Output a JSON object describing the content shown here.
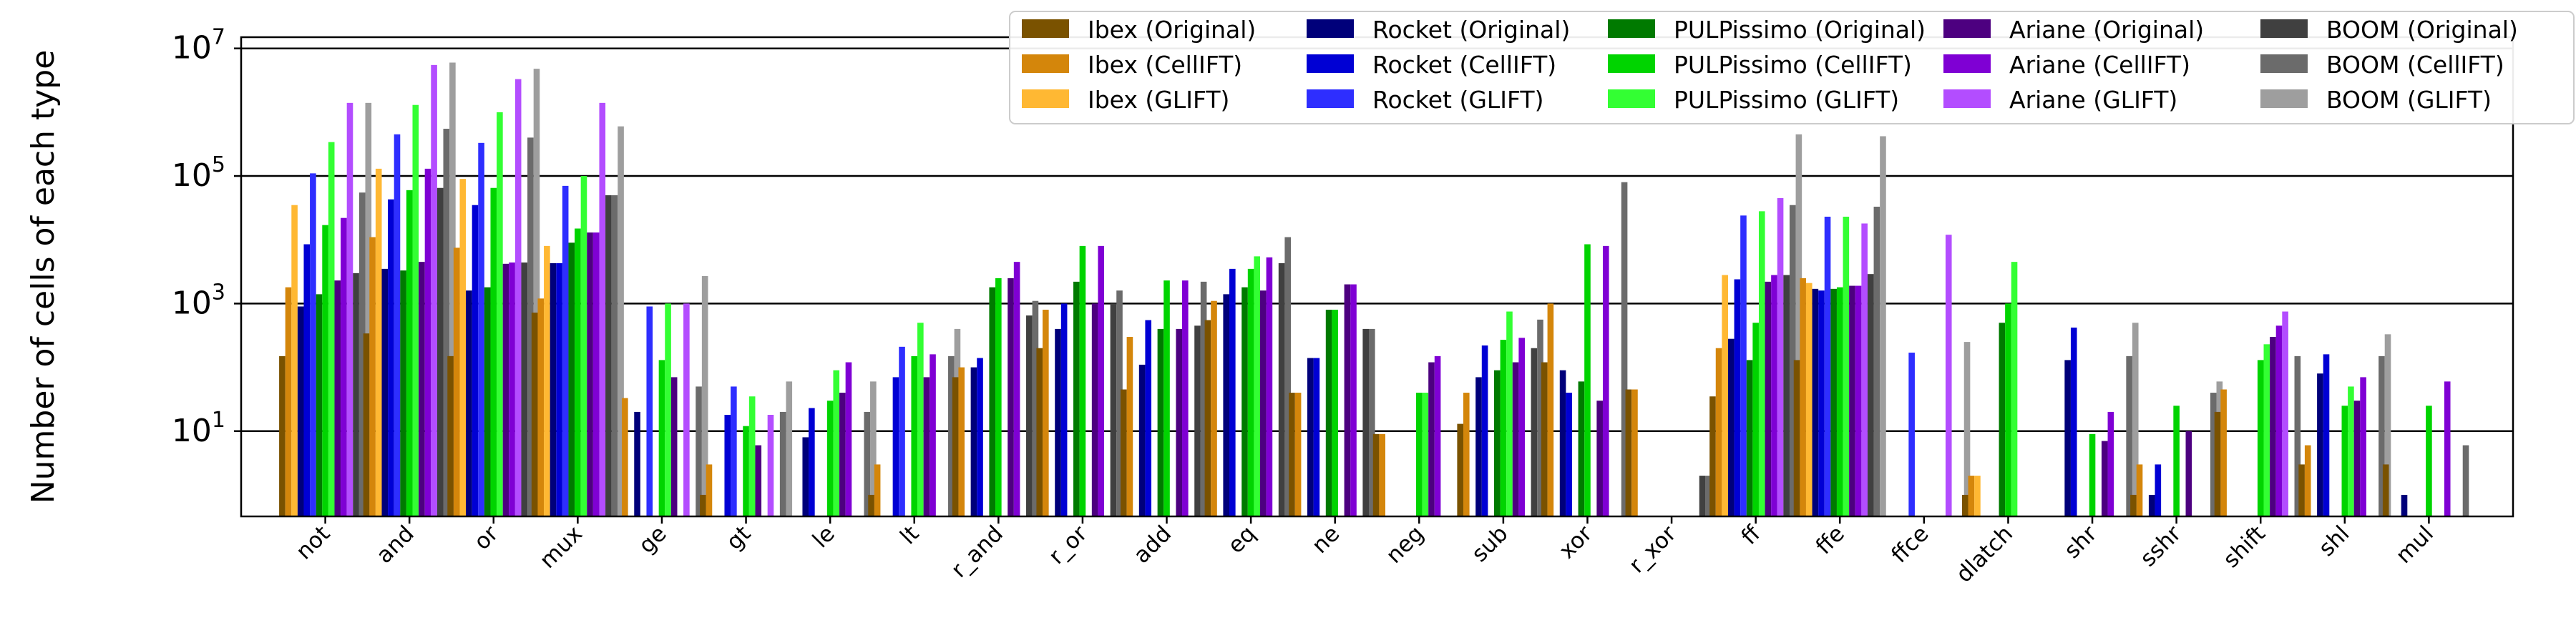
{
  "chart_data": {
    "type": "bar",
    "ylabel": "Number of cells of each type",
    "xlabel": "",
    "yscale": "log",
    "ylim": [
      0.46,
      15000000
    ],
    "y_ticks": [
      {
        "value": 10,
        "base": "10",
        "exp": "1"
      },
      {
        "value": 1000,
        "base": "10",
        "exp": "3"
      },
      {
        "value": 100000,
        "base": "10",
        "exp": "5"
      },
      {
        "value": 10000000,
        "base": "10",
        "exp": "7"
      }
    ],
    "grid": "major horizontal lines",
    "legend_position": "top-right",
    "categories": [
      "not",
      "and",
      "or",
      "mux",
      "ge",
      "gt",
      "le",
      "lt",
      "r_and",
      "r_or",
      "add",
      "eq",
      "ne",
      "neg",
      "sub",
      "xor",
      "r_xor",
      "ff",
      "ffe",
      "ffce",
      "dlatch",
      "shr",
      "sshr",
      "shift",
      "shl",
      "mul"
    ],
    "series": [
      {
        "name": "Ibex (Original)",
        "color": "#7a5200",
        "values": [
          150,
          340,
          150,
          720,
          null,
          1,
          null,
          1,
          70,
          200,
          45,
          550,
          40,
          9,
          13,
          120,
          45,
          35,
          130,
          null,
          1,
          null,
          1,
          20,
          3,
          3
        ]
      },
      {
        "name": "Ibex (CellIFT)",
        "color": "#d4860b",
        "values": [
          1800,
          11000,
          7500,
          1200,
          33,
          3,
          null,
          3,
          100,
          800,
          300,
          1100,
          40,
          9,
          40,
          1000,
          45,
          200,
          2500,
          null,
          2,
          null,
          3,
          45,
          6,
          null
        ]
      },
      {
        "name": "Ibex (GLIFT)",
        "color": "#ffb833",
        "values": [
          35000,
          130000,
          90000,
          8000,
          null,
          null,
          null,
          null,
          null,
          null,
          null,
          null,
          null,
          null,
          null,
          null,
          null,
          2800,
          2100,
          null,
          2,
          null,
          null,
          null,
          null,
          null
        ]
      },
      {
        "name": "Rocket (Original)",
        "color": "#00007a",
        "values": [
          900,
          3500,
          1600,
          4300,
          20,
          null,
          8,
          null,
          100,
          400,
          110,
          1400,
          140,
          null,
          70,
          90,
          null,
          280,
          1700,
          null,
          null,
          130,
          1,
          null,
          80,
          1
        ]
      },
      {
        "name": "Rocket (CellIFT)",
        "color": "#0000d4",
        "values": [
          8500,
          43000,
          35000,
          4300,
          null,
          18,
          23,
          70,
          140,
          1000,
          550,
          3500,
          140,
          null,
          220,
          40,
          null,
          2400,
          1600,
          null,
          null,
          420,
          3,
          null,
          160,
          null
        ]
      },
      {
        "name": "Rocket (GLIFT)",
        "color": "#2e2eff",
        "values": [
          110000,
          450000,
          330000,
          70000,
          900,
          50,
          null,
          210,
          null,
          null,
          null,
          null,
          null,
          null,
          null,
          null,
          null,
          24000,
          23000,
          170,
          null,
          null,
          null,
          null,
          null,
          null
        ]
      },
      {
        "name": "PULPissimo (Original)",
        "color": "#007a00",
        "values": [
          1400,
          3300,
          1800,
          9000,
          null,
          null,
          null,
          null,
          1800,
          2200,
          400,
          1800,
          800,
          null,
          90,
          60,
          null,
          130,
          1700,
          null,
          500,
          null,
          null,
          null,
          null,
          null
        ]
      },
      {
        "name": "PULPissimo (CellIFT)",
        "color": "#00d400",
        "values": [
          17000,
          60000,
          65000,
          15000,
          130,
          12,
          30,
          150,
          2500,
          8000,
          2300,
          3500,
          800,
          40,
          270,
          8500,
          null,
          500,
          1800,
          null,
          1000,
          9,
          25,
          130,
          25,
          25
        ]
      },
      {
        "name": "PULPissimo (GLIFT)",
        "color": "#33ff33",
        "values": [
          340000,
          1300000,
          1000000,
          100000,
          1000,
          35,
          90,
          500,
          null,
          null,
          null,
          5500,
          null,
          40,
          750,
          null,
          null,
          28000,
          23000,
          null,
          4500,
          null,
          null,
          230,
          50,
          null
        ]
      },
      {
        "name": "Ariane (Original)",
        "color": "#4d0080",
        "values": [
          2300,
          4500,
          4200,
          13000,
          70,
          6,
          40,
          70,
          2500,
          1000,
          400,
          1600,
          2000,
          120,
          120,
          30,
          null,
          2200,
          1900,
          null,
          null,
          7,
          10,
          300,
          30,
          null
        ]
      },
      {
        "name": "Ariane (CellIFT)",
        "color": "#7f00d4",
        "values": [
          22000,
          130000,
          4400,
          13000,
          null,
          null,
          120,
          160,
          4500,
          8000,
          2300,
          5300,
          2000,
          150,
          290,
          8000,
          null,
          2800,
          1900,
          null,
          null,
          20,
          null,
          450,
          70,
          60
        ]
      },
      {
        "name": "Ariane (GLIFT)",
        "color": "#b34dff",
        "values": [
          1400000,
          5500000,
          3300000,
          1400000,
          1000,
          18,
          null,
          null,
          null,
          null,
          null,
          null,
          null,
          null,
          null,
          null,
          null,
          45000,
          18000,
          12000,
          null,
          null,
          null,
          750,
          null,
          null
        ]
      },
      {
        "name": "BOOM (Original)",
        "color": "#404040",
        "values": [
          3000,
          65000,
          4400,
          50000,
          null,
          null,
          null,
          null,
          650,
          1000,
          450,
          4300,
          400,
          null,
          200,
          null,
          2,
          2800,
          2900,
          null,
          null,
          null,
          null,
          null,
          null,
          null
        ]
      },
      {
        "name": "BOOM (CellIFT)",
        "color": "#6b6b6b",
        "values": [
          55000,
          550000,
          400000,
          50000,
          50,
          20,
          20,
          150,
          1100,
          1600,
          2200,
          11000,
          400,
          null,
          560,
          80000,
          2,
          35000,
          33000,
          null,
          null,
          150,
          40,
          150,
          150,
          6
        ]
      },
      {
        "name": "BOOM (GLIFT)",
        "color": "#9e9e9e",
        "values": [
          1400000,
          6000000,
          4800000,
          600000,
          2700,
          60,
          60,
          400,
          null,
          null,
          null,
          null,
          null,
          null,
          null,
          null,
          null,
          450000,
          420000,
          250,
          null,
          500,
          60,
          null,
          330,
          null
        ]
      }
    ]
  }
}
